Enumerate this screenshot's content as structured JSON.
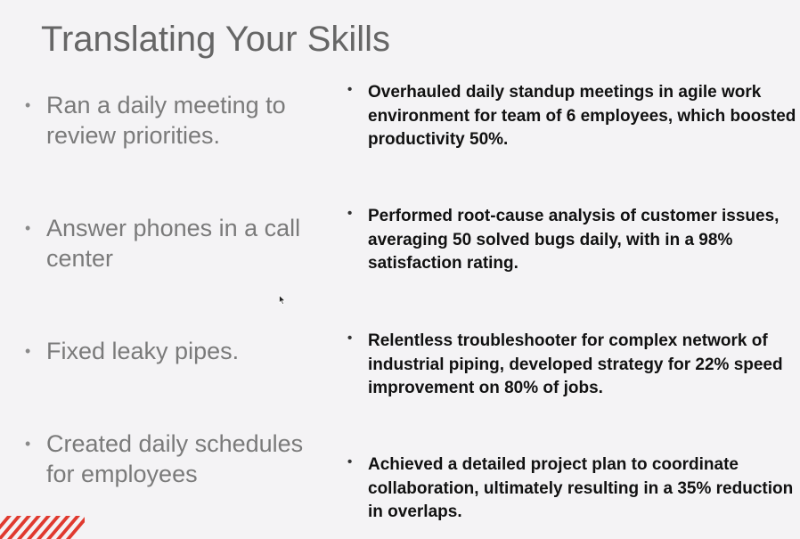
{
  "slide": {
    "title": "Translating Your Skills",
    "bullet_glyph": "•"
  },
  "left_items": [
    {
      "text": "Ran a daily meeting to review priorities."
    },
    {
      "text": "Answer phones in a call center"
    },
    {
      "text": "Fixed leaky pipes."
    },
    {
      "text": "Created daily schedules for employees"
    }
  ],
  "right_items": [
    {
      "text": "Overhauled daily standup meetings in agile work environment for team of 6 employees, which boosted productivity 50%."
    },
    {
      "text": "Performed root-cause analysis of customer issues, averaging 50 solved bugs daily, with in a 98% satisfaction rating."
    },
    {
      "text": "Relentless troubleshooter for complex network of industrial piping, developed strategy for 22% speed improvement on 80% of jobs."
    },
    {
      "text": "Achieved a detailed project plan to coordinate collaboration, ultimately resulting in a 35% reduction in overlaps."
    }
  ],
  "colors": {
    "background": "#f4f3f5",
    "title": "#666666",
    "left_text": "#7a7a7a",
    "right_text": "#111111",
    "accent_stripes": "#e03a2f"
  }
}
